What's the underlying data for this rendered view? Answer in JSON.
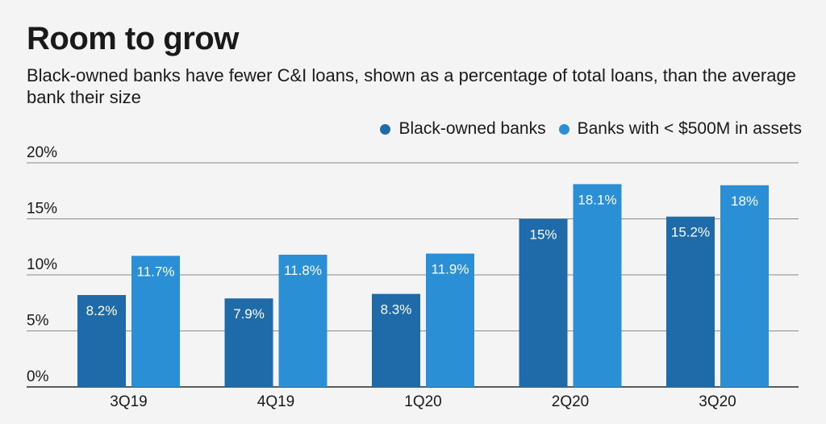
{
  "chart_data": {
    "type": "bar",
    "title": "Room to grow",
    "subtitle": "Black-owned banks have fewer C&I loans, shown as a percentage of total loans, than the average bank their size",
    "categories": [
      "3Q19",
      "4Q19",
      "1Q20",
      "2Q20",
      "3Q20"
    ],
    "series": [
      {
        "name": "Black-owned banks",
        "color": "#1f6aa8",
        "values": [
          8.2,
          7.9,
          8.3,
          15,
          15.2
        ],
        "labels": [
          "8.2%",
          "7.9%",
          "8.3%",
          "15%",
          "15.2%"
        ]
      },
      {
        "name": "Banks with < $500M in assets",
        "color": "#2b8fd6",
        "values": [
          11.7,
          11.8,
          11.9,
          18.1,
          18
        ],
        "labels": [
          "11.7%",
          "11.8%",
          "11.9%",
          "18.1%",
          "18%"
        ]
      }
    ],
    "ylim": [
      0,
      20
    ],
    "yticks": [
      0,
      5,
      10,
      15,
      20
    ],
    "ytick_labels": [
      "0%",
      "5%",
      "10%",
      "15%",
      "20%"
    ],
    "grid": true,
    "legend_position": "top-right"
  }
}
